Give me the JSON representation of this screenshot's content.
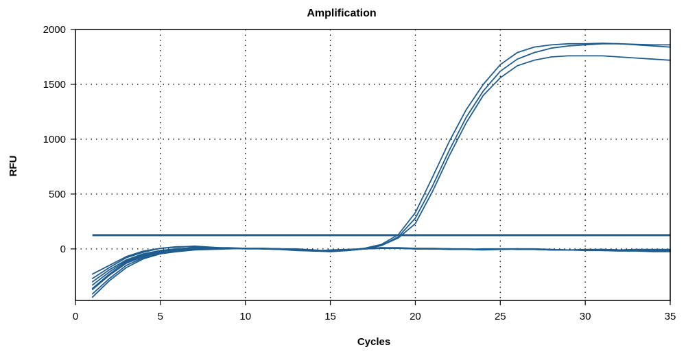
{
  "chart_data": {
    "type": "line",
    "title": "Amplification",
    "xlabel": "Cycles",
    "ylabel": "RFU",
    "xlim": [
      0,
      35
    ],
    "ylim": [
      -470,
      2000
    ],
    "xticks": [
      0,
      5,
      10,
      15,
      20,
      25,
      30,
      35
    ],
    "yticks": [
      0,
      500,
      1000,
      1500,
      2000
    ],
    "grid": true,
    "threshold": 125,
    "colors": {
      "curve": "#1f5c8f",
      "threshold": "#1f5c8f"
    },
    "x": [
      1,
      2,
      3,
      4,
      5,
      6,
      7,
      8,
      9,
      10,
      11,
      12,
      13,
      14,
      15,
      16,
      17,
      18,
      19,
      20,
      21,
      22,
      23,
      24,
      25,
      26,
      27,
      28,
      29,
      30,
      31,
      32,
      33,
      34,
      35
    ],
    "series": [
      {
        "values": [
          -270,
          -170,
          -80,
          -30,
          5,
          15,
          25,
          15,
          5,
          0,
          0,
          -5,
          -15,
          -20,
          -10,
          -5,
          0,
          30,
          110,
          280,
          570,
          900,
          1200,
          1440,
          1620,
          1730,
          1790,
          1830,
          1850,
          1860,
          1870,
          1870,
          1860,
          1850,
          1840
        ]
      },
      {
        "values": [
          -330,
          -210,
          -110,
          -50,
          -15,
          0,
          10,
          10,
          5,
          5,
          0,
          -5,
          -10,
          -20,
          -25,
          -15,
          5,
          40,
          130,
          330,
          650,
          980,
          1270,
          1500,
          1680,
          1790,
          1840,
          1860,
          1870,
          1870,
          1875,
          1870,
          1865,
          1860,
          1860
        ]
      },
      {
        "values": [
          -370,
          -240,
          -130,
          -70,
          -30,
          -10,
          0,
          5,
          5,
          5,
          0,
          0,
          -5,
          -15,
          -20,
          -10,
          0,
          30,
          100,
          230,
          520,
          850,
          1150,
          1400,
          1560,
          1670,
          1720,
          1750,
          1760,
          1760,
          1760,
          1750,
          1740,
          1730,
          1720
        ]
      },
      {
        "values": [
          -410,
          -270,
          -150,
          -80,
          -40,
          -20,
          -5,
          0,
          5,
          5,
          0,
          0,
          -5,
          -10,
          -20,
          -10,
          0,
          5,
          5,
          5,
          0,
          0,
          -5,
          0,
          0,
          -5,
          -5,
          -10,
          -10,
          -10,
          -10,
          -15,
          -15,
          -15,
          -20
        ]
      },
      {
        "values": [
          -440,
          -290,
          -170,
          -90,
          -45,
          -25,
          -10,
          -5,
          0,
          5,
          5,
          0,
          0,
          -10,
          -25,
          -15,
          0,
          10,
          10,
          5,
          5,
          0,
          0,
          -5,
          -5,
          0,
          -5,
          -5,
          -10,
          -10,
          -15,
          -20,
          -20,
          -25,
          -25
        ]
      },
      {
        "values": [
          -230,
          -150,
          -70,
          -20,
          5,
          20,
          20,
          10,
          5,
          5,
          5,
          0,
          -5,
          -15,
          -20,
          -10,
          5,
          10,
          5,
          0,
          0,
          0,
          -5,
          -5,
          0,
          0,
          -5,
          -10,
          -10,
          -5,
          -5,
          -10,
          -10,
          -10,
          -10
        ]
      },
      {
        "values": [
          -300,
          -190,
          -100,
          -45,
          -15,
          0,
          10,
          10,
          10,
          5,
          5,
          0,
          -5,
          -15,
          -20,
          -15,
          0,
          5,
          5,
          0,
          0,
          0,
          -5,
          -5,
          -5,
          0,
          -5,
          -10,
          -10,
          -10,
          -5,
          -10,
          -5,
          -5,
          -5
        ]
      },
      {
        "values": [
          -360,
          -230,
          -120,
          -60,
          -25,
          -5,
          5,
          5,
          5,
          5,
          0,
          0,
          -5,
          -10,
          -20,
          -15,
          0,
          5,
          5,
          0,
          0,
          -5,
          -5,
          -10,
          -5,
          0,
          0,
          -5,
          -10,
          -15,
          -15,
          -15,
          -15,
          -20,
          -20
        ]
      }
    ]
  }
}
